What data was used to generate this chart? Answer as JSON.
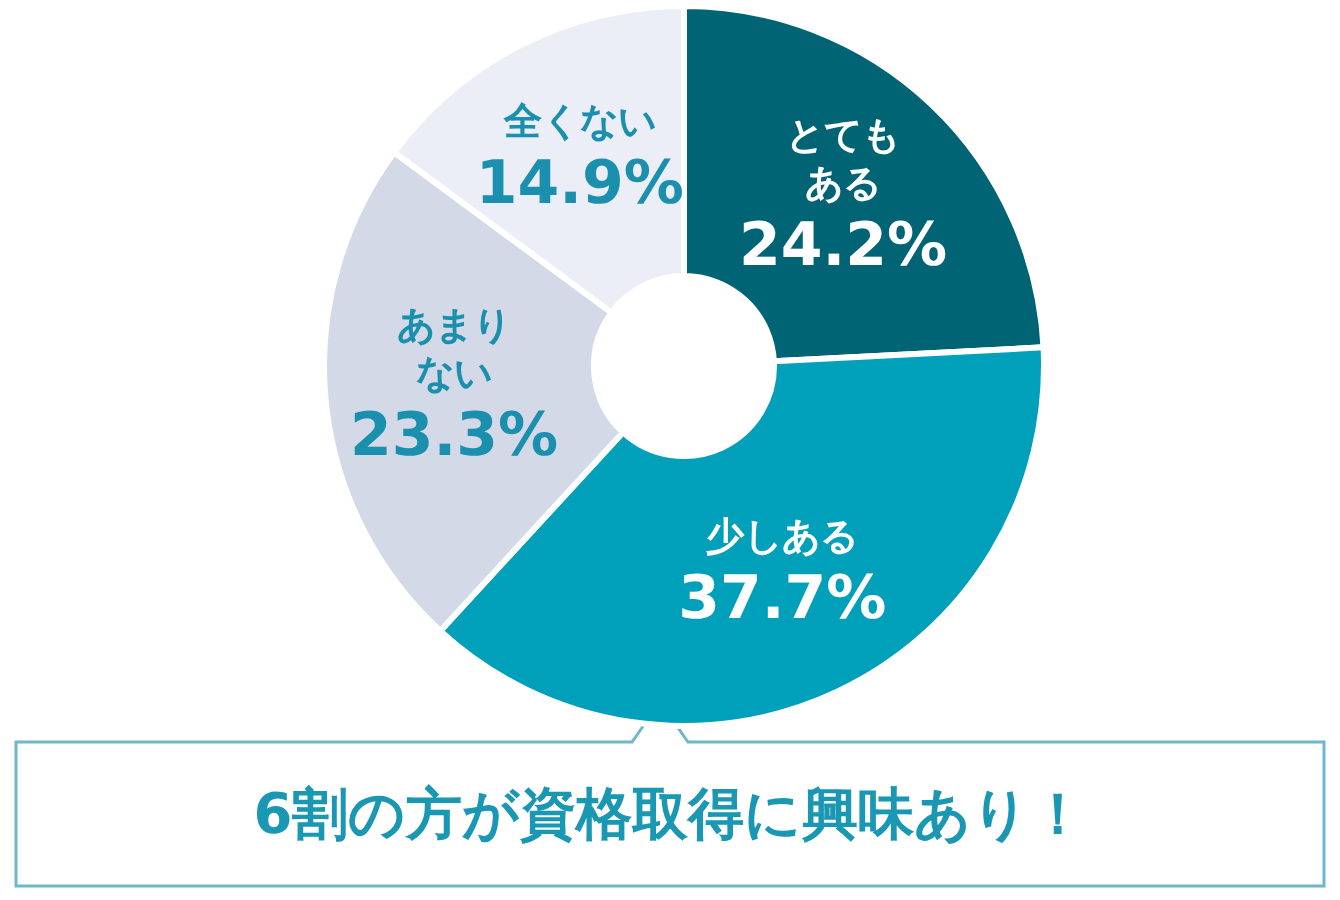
{
  "chart_data": {
    "type": "donut",
    "categories": [
      "とてもある",
      "少しある",
      "あまりない",
      "全くない"
    ],
    "values": [
      24.2,
      37.7,
      23.3,
      14.9
    ],
    "value_labels": [
      "24.2%",
      "37.7%",
      "23.3%",
      "14.9%"
    ],
    "colors": [
      "#006474",
      "#00a0ba",
      "#d4d9e8",
      "#eceef7"
    ],
    "legend": false,
    "annotations": [
      "6割の方が資格取得に興味あり！"
    ]
  }
}
